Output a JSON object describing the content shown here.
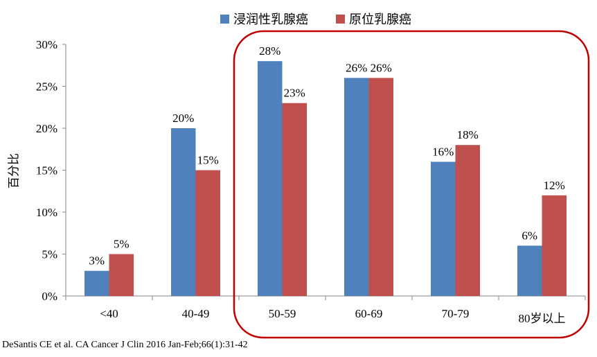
{
  "chart_data": {
    "type": "bar",
    "categories": [
      "<40",
      "40-49",
      "50-59",
      "60-69",
      "70-79",
      "80岁以上"
    ],
    "series": [
      {
        "name": "浸润性乳腺癌",
        "color": "#4f81bd",
        "values": [
          3,
          20,
          28,
          26,
          16,
          6
        ]
      },
      {
        "name": "原位乳腺癌",
        "color": "#c0504d",
        "values": [
          5,
          15,
          23,
          26,
          18,
          12
        ]
      }
    ],
    "ylabel": "百分比",
    "xlabel": "",
    "ylim": [
      0,
      30
    ],
    "yticks": [
      "0%",
      "5%",
      "10%",
      "15%",
      "20%",
      "25%",
      "30%"
    ],
    "legend_position": "top",
    "highlight_color": "#c00000",
    "highlight_categories": [
      "50-59",
      "60-69",
      "70-79",
      "80岁以上"
    ]
  },
  "source": "DeSantis CE et al. CA Cancer J Clin 2016 Jan-Feb;66(1):31-42"
}
